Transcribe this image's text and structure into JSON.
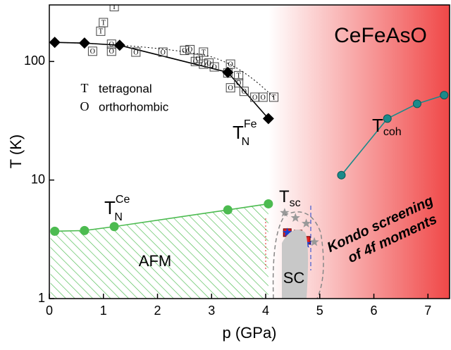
{
  "chart_data": {
    "type": "scatter",
    "title": "CeFeAsO",
    "x_label": "p (GPa)",
    "y_label": "T (K)",
    "log_y": true,
    "xlim": [
      0,
      7.4
    ],
    "ylim": [
      1,
      300
    ],
    "xticks": [
      0,
      1,
      2,
      3,
      4,
      5,
      6,
      7
    ],
    "yticks": [
      1,
      10,
      100
    ],
    "series": [
      {
        "name": "tetragonal",
        "marker": "T",
        "color": "#d62728",
        "line": false,
        "x": [
          1.2,
          1.0,
          0.95,
          2.85,
          3.5,
          4.15
        ],
        "values": [
          290,
          213,
          180,
          120,
          76,
          50
        ]
      },
      {
        "name": "orthorhombic",
        "marker": "O",
        "color": "#1f5fa8",
        "line": false,
        "x": [
          0.8,
          1.15,
          1.15,
          1.6,
          2.1,
          2.5,
          2.6,
          2.7,
          2.75,
          2.85,
          2.95,
          3.05,
          3.3,
          3.35,
          3.5,
          3.35,
          3.6,
          3.8,
          3.95
        ],
        "values": [
          122,
          140,
          122,
          120,
          120,
          124,
          126,
          100,
          106,
          95,
          97,
          90,
          80,
          95,
          66,
          60,
          56,
          50,
          50
        ]
      },
      {
        "marker": "diamond",
        "color": "#000000",
        "line": true,
        "x": [
          0.1,
          0.65,
          1.3,
          3.3,
          4.05
        ],
        "values": [
          145,
          143,
          137,
          81,
          33
        ]
      },
      {
        "marker": "circle",
        "color": "#4cbb50",
        "line": true,
        "x": [
          0.1,
          0.65,
          1.2,
          3.3,
          4.05
        ],
        "values": [
          3.7,
          3.75,
          4.05,
          5.6,
          6.3
        ]
      },
      {
        "marker": "ball",
        "color": "#1a8a8a",
        "line": true,
        "x": [
          5.4,
          6.25,
          6.8,
          7.3
        ],
        "values": [
          11,
          33,
          44,
          52
        ]
      },
      {
        "marker": "square",
        "color": "#e02020",
        "line": false,
        "x": [
          4.4,
          4.6,
          4.75
        ],
        "values": [
          3.6,
          3.5,
          3.1
        ]
      },
      {
        "marker": "star",
        "color": "#1a3fd0",
        "line": false,
        "x": [
          4.4,
          4.55,
          4.75
        ],
        "values": [
          3.6,
          3.3,
          2.9
        ]
      },
      {
        "marker": "star",
        "color": "#999999",
        "line": false,
        "x": [
          4.35,
          4.55,
          4.75,
          4.9
        ],
        "values": [
          5.3,
          4.8,
          4.3,
          3.0
        ]
      }
    ],
    "annotations": [
      {
        "text": "T",
        "sub": "N",
        "sup": "Fe"
      },
      {
        "text": "T",
        "sub": "N",
        "sup": "Ce"
      },
      {
        "text": "T",
        "sub": "coh"
      },
      {
        "text": "T",
        "sub": "sc"
      },
      {
        "text": "AFM"
      },
      {
        "text": "SC"
      },
      {
        "text": "Kondo screening"
      },
      {
        "text": "of 4f moments"
      }
    ]
  }
}
